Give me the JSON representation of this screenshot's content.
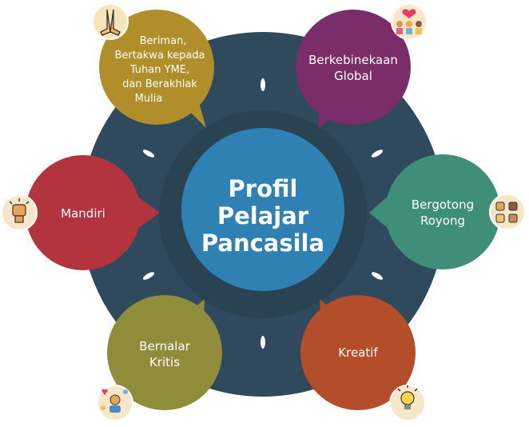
{
  "center": {
    "line1": "Profil",
    "line2": "Pelajar",
    "line3": "Pancasila"
  },
  "nodes": {
    "beriman": {
      "line1": "Beriman,",
      "line2": "Bertakwa kepada",
      "line3": "Tuhan YME,",
      "line4": "dan Berakhlak",
      "line5": "Mulia",
      "icon": "praying-hands-icon",
      "color": "#b08f2b"
    },
    "berkebinekaan": {
      "line1": "Berkebinekaan",
      "line2": "Global",
      "icon": "diverse-people-heart-icon",
      "color": "#7a2d69"
    },
    "bergotong": {
      "line1": "Bergotong",
      "line2": "Royong",
      "icon": "joined-hands-icon",
      "color": "#3f8f78"
    },
    "kreatif": {
      "line1": "Kreatif",
      "icon": "lightbulb-person-icon",
      "color": "#b44d2a"
    },
    "bernalar": {
      "line1": "Bernalar",
      "line2": "Kritis",
      "icon": "thinking-person-icon",
      "color": "#8f8c3a"
    },
    "mandiri": {
      "line1": "Mandiri",
      "icon": "raised-fist-icon",
      "color": "#b3343e"
    }
  },
  "colors": {
    "outer_ring": "#2f4a5c",
    "inner_ring": "#2a4352",
    "center": "#2f80b3"
  }
}
